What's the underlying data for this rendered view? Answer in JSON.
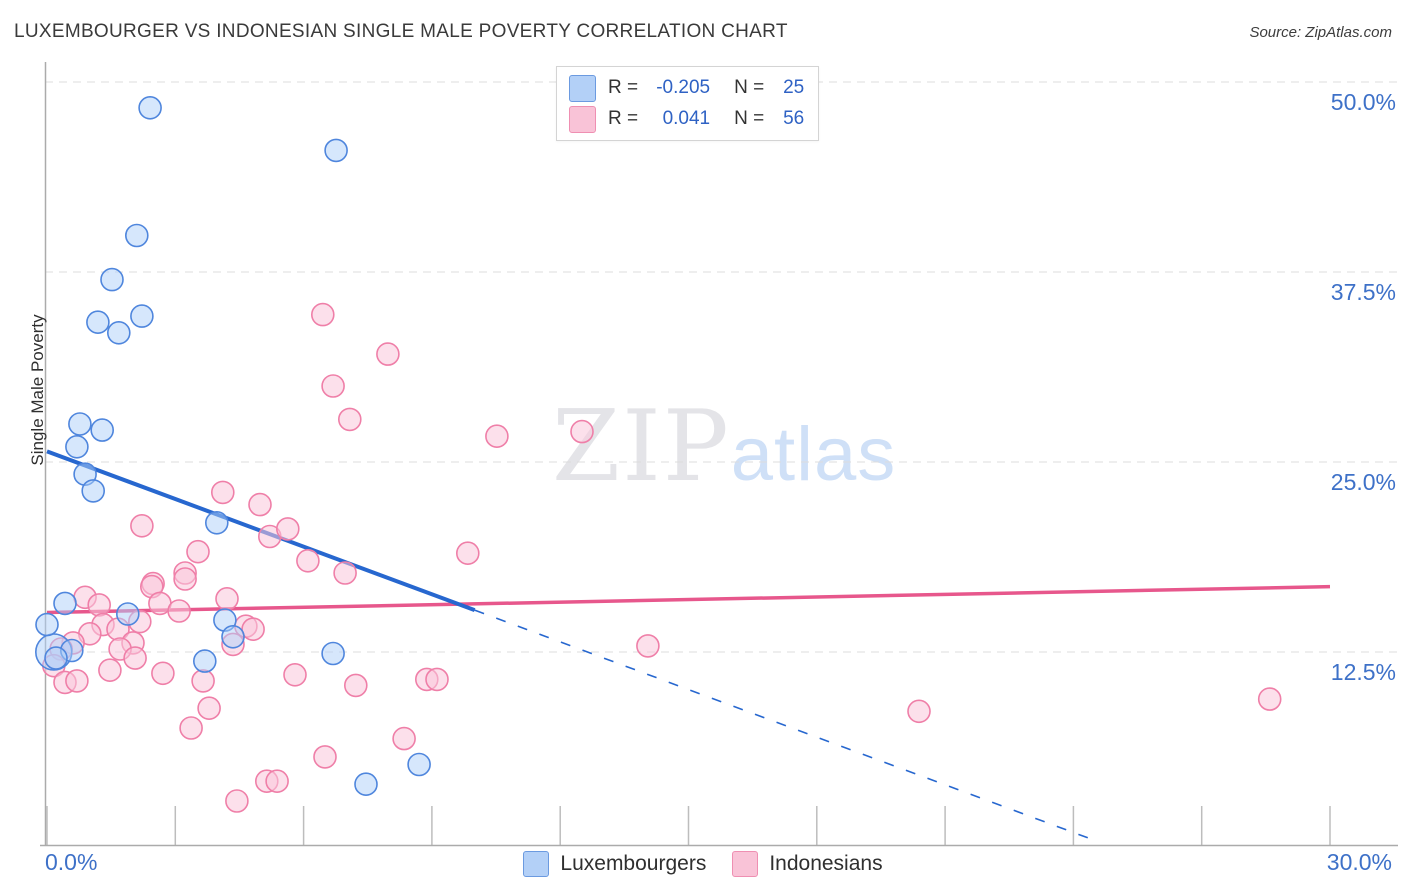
{
  "title": "LUXEMBOURGER VS INDONESIAN SINGLE MALE POVERTY CORRELATION CHART",
  "source": "Source: ZipAtlas.com",
  "watermark": {
    "zip": "ZIP",
    "atlas": "atlas"
  },
  "y_axis": {
    "title": "Single Male Poverty",
    "ticks": [
      {
        "label": "50.0%",
        "value": 50
      },
      {
        "label": "37.5%",
        "value": 37.5
      },
      {
        "label": "25.0%",
        "value": 25
      },
      {
        "label": "12.5%",
        "value": 12.5
      }
    ]
  },
  "x_axis": {
    "min_label": "0.0%",
    "max_label": "30.0%",
    "min": 0,
    "max": 30,
    "tick_step": 3
  },
  "legend_box": {
    "rows": [
      {
        "series": "luxembourgers",
        "r_label": "R =",
        "r_value": "-0.205",
        "n_label": "N =",
        "n_value": "25"
      },
      {
        "series": "indonesians",
        "r_label": "R =",
        "r_value": "0.041",
        "n_label": "N =",
        "n_value": "56"
      }
    ]
  },
  "bottom_legend": {
    "luxembourgers": "Luxembourgers",
    "indonesians": "Indonesians"
  },
  "colors": {
    "blue_point_stroke": "#4f86dd",
    "blue_point_fill": "rgba(174,207,249,0.5)",
    "pink_point_stroke": "#ef7fa8",
    "pink_point_fill": "rgba(250,199,219,0.55)",
    "blue_trend": "#2767cf",
    "pink_trend": "#e7578c",
    "axis_label": "#3e71c8",
    "grid": "#dcdcdc",
    "axis_line": "#ababab",
    "tick": "#bdbdbd",
    "legend_value": "#2f62c4"
  },
  "chart_data": {
    "type": "scatter",
    "title": "LUXEMBOURGER VS INDONESIAN SINGLE MALE POVERTY CORRELATION CHART",
    "xlabel": "",
    "ylabel": "Single Male Poverty",
    "xlim": [
      0,
      30
    ],
    "ylim": [
      0,
      52.5
    ],
    "x_unit": "%",
    "y_unit": "%",
    "grid": "horizontal-dashed",
    "legend_position": "bottom-center",
    "series": [
      {
        "name": "Luxembourgers",
        "r": -0.205,
        "n": 25,
        "points": [
          [
            2.41,
            48.3
          ],
          [
            6.76,
            45.5
          ],
          [
            2.1,
            39.9
          ],
          [
            1.52,
            37.0
          ],
          [
            2.22,
            34.6
          ],
          [
            1.19,
            34.2
          ],
          [
            1.68,
            33.5
          ],
          [
            0.77,
            27.5
          ],
          [
            1.29,
            27.1
          ],
          [
            0.7,
            26.0
          ],
          [
            0.89,
            24.2
          ],
          [
            1.08,
            23.1
          ],
          [
            3.97,
            21.0
          ],
          [
            0.42,
            15.7
          ],
          [
            1.89,
            15.0
          ],
          [
            4.16,
            14.6
          ],
          [
            4.35,
            13.5
          ],
          [
            0.16,
            12.5,
            18
          ],
          [
            0.58,
            12.6
          ],
          [
            0.21,
            12.1
          ],
          [
            0.0,
            14.3
          ],
          [
            3.69,
            11.9
          ],
          [
            6.69,
            12.4
          ],
          [
            7.46,
            3.8
          ],
          [
            8.7,
            5.1
          ]
        ]
      },
      {
        "name": "Indonesians",
        "r": 0.041,
        "n": 56,
        "points": [
          [
            6.45,
            34.7
          ],
          [
            7.97,
            32.1
          ],
          [
            6.69,
            30.0
          ],
          [
            7.08,
            27.8
          ],
          [
            10.52,
            26.7
          ],
          [
            12.51,
            27.0
          ],
          [
            2.22,
            20.8
          ],
          [
            4.11,
            23.0
          ],
          [
            4.98,
            22.2
          ],
          [
            5.21,
            20.1
          ],
          [
            5.63,
            20.6
          ],
          [
            6.1,
            18.5
          ],
          [
            6.97,
            17.7
          ],
          [
            3.53,
            19.1
          ],
          [
            3.23,
            17.7
          ],
          [
            2.48,
            17.0
          ],
          [
            9.84,
            19.0
          ],
          [
            0.89,
            16.1
          ],
          [
            1.22,
            15.6
          ],
          [
            2.45,
            16.8
          ],
          [
            2.64,
            15.7
          ],
          [
            3.09,
            15.2
          ],
          [
            3.23,
            17.3
          ],
          [
            4.21,
            16.0
          ],
          [
            4.65,
            14.2
          ],
          [
            4.82,
            14.0
          ],
          [
            4.35,
            13.0
          ],
          [
            1.31,
            14.3
          ],
          [
            2.17,
            14.5
          ],
          [
            1.66,
            14.0
          ],
          [
            1.0,
            13.7
          ],
          [
            0.61,
            13.1
          ],
          [
            2.01,
            13.1
          ],
          [
            1.71,
            12.7
          ],
          [
            2.06,
            12.1
          ],
          [
            0.33,
            12.7
          ],
          [
            0.16,
            11.6
          ],
          [
            1.47,
            11.3
          ],
          [
            2.71,
            11.1
          ],
          [
            0.42,
            10.5
          ],
          [
            0.7,
            10.6
          ],
          [
            3.65,
            10.6
          ],
          [
            5.8,
            11.0
          ],
          [
            7.22,
            10.3
          ],
          [
            8.88,
            10.7
          ],
          [
            9.12,
            10.7
          ],
          [
            14.05,
            12.9
          ],
          [
            3.79,
            8.8
          ],
          [
            3.37,
            7.5
          ],
          [
            6.5,
            5.6
          ],
          [
            8.35,
            6.8
          ],
          [
            4.44,
            2.7
          ],
          [
            5.14,
            4.0
          ],
          [
            5.38,
            4.0
          ],
          [
            20.39,
            8.6
          ],
          [
            28.59,
            9.4
          ]
        ]
      }
    ],
    "trend_lines": [
      {
        "series": "Luxembourgers",
        "x1": 0,
        "y1": 25.7,
        "x2": 24.6,
        "y2": 0.0,
        "solid_until_x": 10.0,
        "style": "solid-then-dashed"
      },
      {
        "series": "Indonesians",
        "x1": 0,
        "y1": 15.1,
        "x2": 30,
        "y2": 16.8,
        "style": "solid"
      }
    ]
  }
}
